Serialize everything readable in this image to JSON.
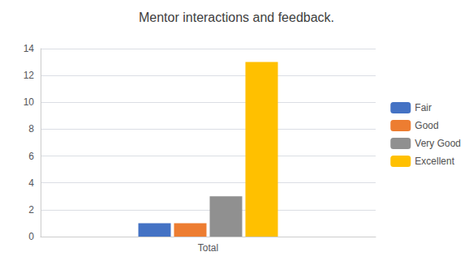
{
  "chart_data": {
    "type": "bar",
    "title": "Mentor interactions and feedback.",
    "categories": [
      "Total"
    ],
    "series": [
      {
        "name": "Fair",
        "color": "#4472c4",
        "values": [
          1
        ]
      },
      {
        "name": "Good",
        "color": "#ed7d31",
        "values": [
          1
        ]
      },
      {
        "name": "Very Good",
        "color": "#909090",
        "values": [
          3
        ]
      },
      {
        "name": "Excellent",
        "color": "#ffc000",
        "values": [
          13
        ]
      }
    ],
    "ylim": [
      0,
      14
    ],
    "yticks": [
      0,
      2,
      4,
      6,
      8,
      10,
      12,
      14
    ],
    "grid": true,
    "legend": "right"
  }
}
